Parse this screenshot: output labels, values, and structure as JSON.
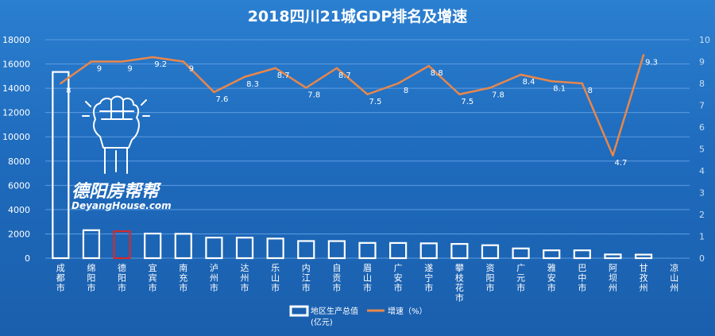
{
  "chart_data": {
    "type": "bar",
    "title": "2018四川21城GDP排名及增速",
    "categories": [
      "成都市",
      "绵阳市",
      "德阳市",
      "宜宾市",
      "南充市",
      "泸州市",
      "达州市",
      "乐山市",
      "内江市",
      "自贡市",
      "眉山市",
      "广安市",
      "遂宁市",
      "攀枝花市",
      "资阳市",
      "广元市",
      "雅安市",
      "巴中市",
      "阿坝州",
      "甘孜州",
      "凉山州"
    ],
    "series": [
      {
        "name": "地区生产总值(亿元)",
        "axis": "left",
        "type": "bar",
        "values": [
          15343,
          2304,
          2213,
          2026,
          2006,
          1695,
          1690,
          1615,
          1411,
          1406,
          1256,
          1250,
          1221,
          1173,
          1066,
          801,
          646,
          645,
          306,
          292,
          0
        ]
      },
      {
        "name": "增速(%)",
        "axis": "right",
        "type": "line",
        "values": [
          8,
          9,
          9,
          9.2,
          9,
          7.6,
          8.3,
          8.7,
          7.8,
          8.7,
          7.5,
          8,
          8.8,
          7.5,
          7.8,
          8.4,
          8.1,
          8,
          4.7,
          9.3,
          null
        ]
      }
    ],
    "highlighted_category": "德阳市",
    "y_left": {
      "ticks": [
        0,
        2000,
        4000,
        6000,
        8000,
        10000,
        12000,
        14000,
        16000,
        18000
      ],
      "ylim": [
        0,
        18000
      ]
    },
    "y_right": {
      "ticks": [
        0,
        1,
        2,
        3,
        4,
        5,
        6,
        7,
        8,
        9,
        10
      ],
      "ylim": [
        0,
        10
      ]
    },
    "grid": true,
    "legend_position": "bottom-center"
  },
  "legend": {
    "bar_label_line1": "地区生产总值",
    "bar_label_line2": "(亿元)",
    "line_label": "增速（%）"
  },
  "watermark": {
    "chinese": "德阳房帮帮",
    "english": "DeyangHouse.com"
  },
  "colors": {
    "background": "#1f6bbd",
    "bar_outline": "#ffffff",
    "highlight_outline": "#d62a2a",
    "line": "#e8874b",
    "grid": "#5d9be0"
  }
}
